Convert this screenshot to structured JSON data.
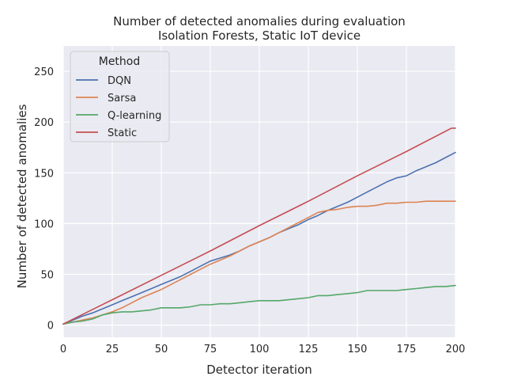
{
  "chart_data": {
    "type": "line",
    "title": "Number of detected anomalies during evaluation",
    "subtitle": "Isolation Forests, Static IoT device",
    "xlabel": "Detector iteration",
    "ylabel": "Number of detected anomalies",
    "xlim": [
      0,
      200
    ],
    "ylim": [
      -12,
      275
    ],
    "xticks": [
      0,
      25,
      50,
      75,
      100,
      125,
      150,
      175,
      200
    ],
    "yticks": [
      0,
      50,
      100,
      150,
      200,
      250
    ],
    "grid": true,
    "background": "#eaeaf2",
    "legend": {
      "title": "Method",
      "placement": "top-left"
    },
    "series": [
      {
        "name": "DQN",
        "color": "#4c72b0",
        "x": [
          0,
          5,
          10,
          15,
          20,
          25,
          30,
          35,
          40,
          45,
          50,
          55,
          60,
          65,
          70,
          75,
          80,
          85,
          90,
          95,
          100,
          105,
          110,
          115,
          120,
          125,
          130,
          135,
          140,
          145,
          150,
          155,
          160,
          165,
          170,
          175,
          180,
          185,
          190,
          195,
          200
        ],
        "values": [
          1,
          5,
          9,
          12,
          16,
          20,
          24,
          28,
          32,
          36,
          40,
          44,
          48,
          53,
          58,
          63,
          66,
          69,
          73,
          78,
          82,
          86,
          91,
          95,
          99,
          104,
          108,
          113,
          117,
          121,
          126,
          131,
          136,
          141,
          145,
          147,
          152,
          156,
          160,
          165,
          170
        ]
      },
      {
        "name": "Sarsa",
        "color": "#dd8452",
        "x": [
          0,
          5,
          10,
          15,
          20,
          25,
          30,
          35,
          40,
          45,
          50,
          55,
          60,
          65,
          70,
          75,
          80,
          85,
          90,
          95,
          100,
          105,
          110,
          115,
          120,
          125,
          130,
          135,
          140,
          145,
          150,
          155,
          160,
          165,
          170,
          175,
          180,
          185,
          190,
          195,
          200
        ],
        "values": [
          1,
          3,
          5,
          7,
          10,
          13,
          17,
          22,
          27,
          31,
          35,
          40,
          45,
          50,
          55,
          60,
          64,
          68,
          73,
          78,
          82,
          86,
          91,
          96,
          101,
          106,
          111,
          113,
          114,
          116,
          117,
          117,
          118,
          120,
          120,
          121,
          121,
          122,
          122,
          122,
          122
        ]
      },
      {
        "name": "Q-learning",
        "color": "#55a868",
        "x": [
          0,
          5,
          10,
          15,
          20,
          25,
          30,
          35,
          40,
          45,
          50,
          55,
          60,
          65,
          70,
          75,
          80,
          85,
          90,
          95,
          100,
          105,
          110,
          115,
          120,
          125,
          130,
          135,
          140,
          145,
          150,
          155,
          160,
          165,
          170,
          175,
          180,
          185,
          190,
          195,
          200
        ],
        "values": [
          1,
          3,
          4,
          6,
          10,
          12,
          13,
          13,
          14,
          15,
          17,
          17,
          17,
          18,
          20,
          20,
          21,
          21,
          22,
          23,
          24,
          24,
          24,
          25,
          26,
          27,
          29,
          29,
          30,
          31,
          32,
          34,
          34,
          34,
          34,
          35,
          36,
          37,
          38,
          38,
          39
        ]
      },
      {
        "name": "Static",
        "color": "#c44e52",
        "x": [
          0,
          25,
          50,
          75,
          100,
          125,
          150,
          175,
          198,
          200
        ],
        "values": [
          1,
          25,
          49,
          73,
          98,
          122,
          147,
          171,
          194,
          194
        ]
      }
    ]
  }
}
